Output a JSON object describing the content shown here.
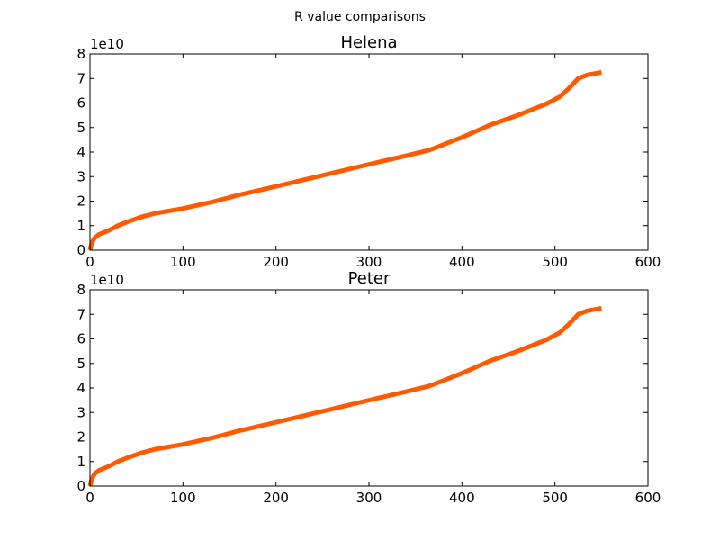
{
  "figure": {
    "suptitle": "R value comparisons"
  },
  "chart_data": [
    {
      "type": "line",
      "title": "Helena",
      "xlabel": "",
      "ylabel": "",
      "xlim": [
        0,
        600
      ],
      "ylim": [
        0,
        8
      ],
      "y_offset_label": "1e10",
      "x_ticks": [
        "0",
        "100",
        "200",
        "300",
        "400",
        "500",
        "600"
      ],
      "y_ticks": [
        "0",
        "1",
        "2",
        "3",
        "4",
        "5",
        "6",
        "7",
        "8"
      ],
      "grid": false,
      "series_color": "#ff5a00",
      "series": [
        {
          "x": [
            0,
            2,
            5,
            10,
            20,
            30,
            40,
            55,
            70,
            100,
            130,
            160,
            200,
            250,
            300,
            340,
            365,
            380,
            400,
            430,
            460,
            490,
            505,
            515,
            525,
            535,
            550
          ],
          "y": [
            0.0,
            0.3,
            0.5,
            0.65,
            0.8,
            1.0,
            1.15,
            1.35,
            1.5,
            1.7,
            1.95,
            2.25,
            2.6,
            3.05,
            3.5,
            3.85,
            4.08,
            4.3,
            4.6,
            5.1,
            5.5,
            5.95,
            6.25,
            6.6,
            7.0,
            7.15,
            7.25
          ]
        }
      ]
    },
    {
      "type": "line",
      "title": "Peter",
      "xlabel": "",
      "ylabel": "",
      "xlim": [
        0,
        600
      ],
      "ylim": [
        0,
        8
      ],
      "y_offset_label": "1e10",
      "x_ticks": [
        "0",
        "100",
        "200",
        "300",
        "400",
        "500",
        "600"
      ],
      "y_ticks": [
        "0",
        "1",
        "2",
        "3",
        "4",
        "5",
        "6",
        "7",
        "8"
      ],
      "grid": false,
      "series_color": "#ff5a00",
      "series": [
        {
          "x": [
            0,
            2,
            5,
            10,
            20,
            30,
            40,
            55,
            70,
            100,
            130,
            160,
            200,
            250,
            300,
            340,
            365,
            380,
            400,
            430,
            460,
            490,
            505,
            515,
            525,
            535,
            550
          ],
          "y": [
            0.0,
            0.3,
            0.5,
            0.65,
            0.8,
            1.0,
            1.15,
            1.35,
            1.5,
            1.7,
            1.95,
            2.25,
            2.6,
            3.05,
            3.5,
            3.85,
            4.08,
            4.3,
            4.6,
            5.1,
            5.5,
            5.95,
            6.25,
            6.6,
            7.0,
            7.15,
            7.25
          ]
        }
      ]
    }
  ]
}
